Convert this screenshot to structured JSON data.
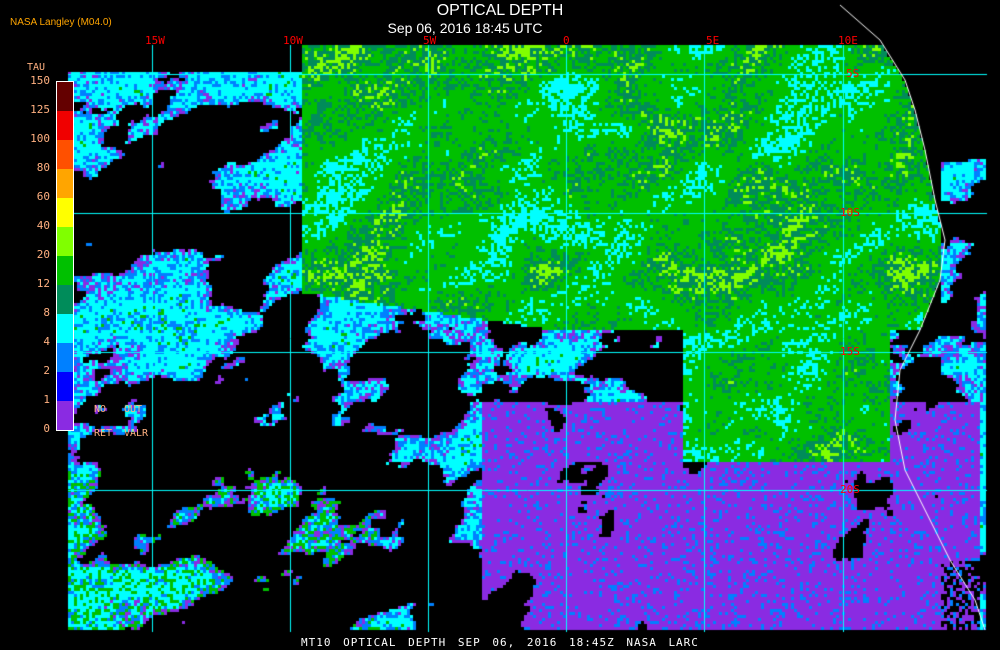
{
  "title": "OPTICAL DEPTH",
  "subtitle": "Sep 06, 2016 18:45 UTC",
  "source": "NASA Langley (M04.0)",
  "footer": "MT10  OPTICAL DEPTH  SEP 06, 2016 18:45Z  NASA LARC",
  "longitude_labels": [
    "15W",
    "10W",
    "5W",
    "0",
    "5E",
    "10E"
  ],
  "latitude_labels": [
    "5S",
    "10S",
    "15S",
    "20S"
  ],
  "colorbar": {
    "label": "TAU",
    "ticks": [
      "0",
      "1",
      "2",
      "4",
      "8",
      "12",
      "20",
      "40",
      "60",
      "80",
      "100",
      "125",
      "150"
    ],
    "colors": [
      "#8a2be2",
      "#0000ff",
      "#0080ff",
      "#00ffff",
      "#008c5a",
      "#00c000",
      "#80ff00",
      "#ffff00",
      "#ffa500",
      "#ff5000",
      "#f00000",
      "#640000"
    ],
    "no_ret": [
      "NO",
      "RET"
    ],
    "out_valr": [
      "OUT",
      "VALR"
    ]
  },
  "colors": {
    "grid": "#00ffff",
    "coastline": "#ffffff",
    "labels": "#ff0000"
  }
}
